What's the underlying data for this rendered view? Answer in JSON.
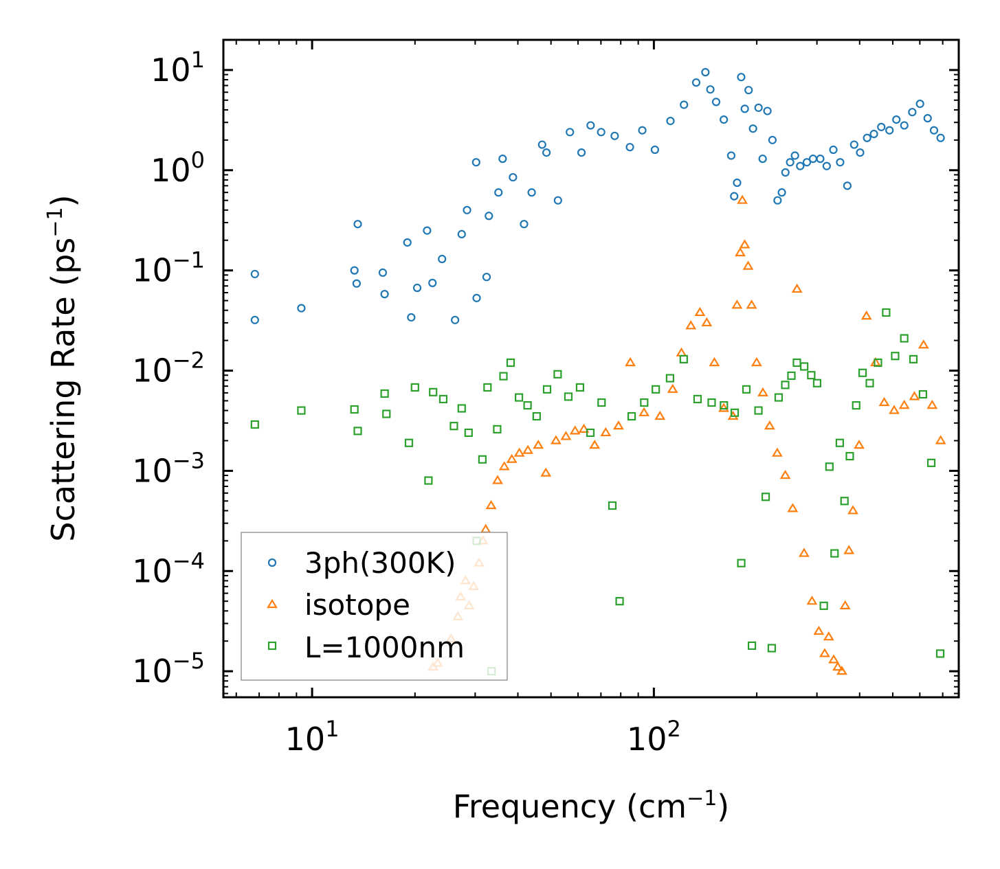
{
  "chart_data": {
    "type": "scatter",
    "xscale": "log",
    "yscale": "log",
    "xlim": [
      5.5,
      780
    ],
    "ylim": [
      5.5e-06,
      20
    ],
    "xlabel": "Frequency (cm",
    "xlabel_sup": "−1",
    "xlabel_end": ")",
    "ylabel": "Scattering Rate (ps",
    "ylabel_sup": "−1",
    "ylabel_end": ")",
    "xticks": [
      {
        "value": 10,
        "base": "10",
        "exp": "1"
      },
      {
        "value": 100,
        "base": "10",
        "exp": "2"
      }
    ],
    "yticks": [
      {
        "value": 10,
        "base": "10",
        "exp": "1"
      },
      {
        "value": 1,
        "base": "10",
        "exp": "0"
      },
      {
        "value": 0.1,
        "base": "10",
        "exp": "−1"
      },
      {
        "value": 0.01,
        "base": "10",
        "exp": "−2"
      },
      {
        "value": 0.001,
        "base": "10",
        "exp": "−3"
      },
      {
        "value": 0.0001,
        "base": "10",
        "exp": "−4"
      },
      {
        "value": 1e-05,
        "base": "10",
        "exp": "−5"
      }
    ],
    "legend_position": "bottom-left",
    "series": [
      {
        "name": "3ph(300K)",
        "marker": "circle",
        "color": "#1f77b4",
        "x": [
          6.8,
          6.8,
          9.3,
          13.3,
          13.5,
          13.6,
          16.1,
          16.3,
          19,
          19.5,
          20.3,
          21.7,
          22.5,
          24,
          26.2,
          27.4,
          28.4,
          30.3,
          30.2,
          32.4,
          32.9,
          35.1,
          36.1,
          38.7,
          41.7,
          43.9,
          47.1,
          48.5,
          52.4,
          56.8,
          61.4,
          65.3,
          70.1,
          76.8,
          85.1,
          92.5,
          100.7,
          111.8,
          122.5,
          133,
          141.5,
          146.3,
          152.1,
          160.2,
          168.4,
          171.8,
          175.2,
          180.1,
          184.5,
          189.3,
          195,
          202.4,
          208.1,
          214.9,
          222.3,
          230.1,
          236.8,
          242.6,
          250.4,
          258.7,
          268,
          280.3,
          292.2,
          306.8,
          320.4,
          335.1,
          350.8,
          368.2,
          385.5,
          401.3,
          420.6,
          440.4,
          462.8,
          489.1,
          512.3,
          540.4,
          570.2,
          600.8,
          632.5,
          660.1,
          690.3
        ],
        "y": [
          0.092,
          0.032,
          0.042,
          0.1,
          0.074,
          0.29,
          0.095,
          0.058,
          0.19,
          0.034,
          0.067,
          0.25,
          0.075,
          0.13,
          0.032,
          0.23,
          0.4,
          0.053,
          1.2,
          0.086,
          0.35,
          0.6,
          1.3,
          0.85,
          0.29,
          0.6,
          1.8,
          1.5,
          0.5,
          2.4,
          1.5,
          2.8,
          2.4,
          2.2,
          1.7,
          2.5,
          1.6,
          3.1,
          4.5,
          7.5,
          9.5,
          6.4,
          4.8,
          3.2,
          1.4,
          0.55,
          0.75,
          8.5,
          4.1,
          6.3,
          2.6,
          4.2,
          1.3,
          3.9,
          2,
          0.5,
          0.6,
          0.95,
          1.2,
          1.4,
          1.1,
          1.2,
          1.3,
          1.3,
          1.1,
          1.6,
          1.2,
          0.7,
          1.8,
          1.5,
          2.1,
          2.3,
          2.7,
          2.5,
          3.2,
          2.8,
          3.8,
          4.6,
          3.3,
          2.5,
          2.1
        ]
      },
      {
        "name": "isotope",
        "marker": "triangle",
        "color": "#ff7f0e",
        "x": [
          22.6,
          23.3,
          25.5,
          26.7,
          27.2,
          28.1,
          28.8,
          29.7,
          30.8,
          31.6,
          32.2,
          33.4,
          34.9,
          36.5,
          38.4,
          40.4,
          42.8,
          45.9,
          48.3,
          51.7,
          55.3,
          58.8,
          62.4,
          67.1,
          72.3,
          78.8,
          85.3,
          93.6,
          104.2,
          113.5,
          120.4,
          128.3,
          136.4,
          142.8,
          150.3,
          160.1,
          170.5,
          175.1,
          178.9,
          181.5,
          184.4,
          188.7,
          193.2,
          199.8,
          208.5,
          218.2,
          229.6,
          242.4,
          254.8,
          262.3,
          275.1,
          290.2,
          303.8,
          316.1,
          324.8,
          335.9,
          345.2,
          354.9,
          362.8,
          372.3,
          382.4,
          398.6,
          418.9,
          445.2,
          472.1,
          504.8,
          540.2,
          578.6,
          615.3,
          652.1,
          690.5
        ],
        "y": [
          1.1e-05,
          1.2e-05,
          2.1e-05,
          3.5e-05,
          5.5e-05,
          8e-05,
          4.5e-05,
          7e-05,
          0.00012,
          0.0002,
          0.00026,
          0.00045,
          0.0008,
          0.0011,
          0.0013,
          0.0015,
          0.0016,
          0.0018,
          0.00095,
          0.002,
          0.0022,
          0.0025,
          0.0026,
          0.0018,
          0.0024,
          0.0028,
          0.012,
          0.0038,
          0.0035,
          0.0065,
          0.015,
          0.028,
          0.038,
          0.03,
          0.012,
          0.0042,
          0.0035,
          0.045,
          0.15,
          0.5,
          0.18,
          0.11,
          0.045,
          0.012,
          0.006,
          0.0028,
          0.0015,
          0.0009,
          0.00042,
          0.065,
          0.00015,
          5e-05,
          2.5e-05,
          1.5e-05,
          2.2e-05,
          1.3e-05,
          1.1e-05,
          1e-05,
          4.5e-05,
          0.00016,
          0.0004,
          0.0018,
          0.035,
          0.012,
          0.0048,
          0.004,
          0.0045,
          0.0055,
          0.018,
          0.0045,
          0.002
        ]
      },
      {
        "name": "L=1000nm",
        "marker": "square",
        "color": "#2ca02c",
        "x": [
          6.8,
          9.3,
          13.3,
          13.6,
          16.3,
          16.5,
          19.2,
          20,
          21.9,
          22.6,
          24.2,
          26,
          27.4,
          28.7,
          30.3,
          31.5,
          32.6,
          33.5,
          34.8,
          36.3,
          38.1,
          40.3,
          42.7,
          45.4,
          48.7,
          52.3,
          56.2,
          60.8,
          65.2,
          70.3,
          75.6,
          79.4,
          86.1,
          93.7,
          101.3,
          111.5,
          122.3,
          134.2,
          147.6,
          160.3,
          172.4,
          180.2,
          186.5,
          193.6,
          202.3,
          212.4,
          221.3,
          231.8,
          242.3,
          252.6,
          262.1,
          275.4,
          288.7,
          300.4,
          314.2,
          326.3,
          337.8,
          349.9,
          361.2,
          374.3,
          390.8,
          408.1,
          428.2,
          452.6,
          478.3,
          508.1,
          540.2,
          574.6,
          612.8,
          648.3,
          688.5
        ],
        "y": [
          0.0029,
          0.004,
          0.0041,
          0.0025,
          0.0059,
          0.0037,
          0.0019,
          0.0068,
          0.0008,
          0.0061,
          0.0052,
          0.0028,
          0.0042,
          0.0024,
          0.0002,
          0.0013,
          0.0068,
          1e-05,
          0.0026,
          0.0088,
          0.012,
          0.0054,
          0.0045,
          0.0035,
          0.0065,
          0.0092,
          0.0055,
          0.0068,
          0.0024,
          0.0048,
          0.00045,
          5e-05,
          0.0035,
          0.0048,
          0.0065,
          0.0084,
          0.013,
          0.0052,
          0.0048,
          0.0045,
          0.0038,
          0.00012,
          0.0065,
          1.8e-05,
          0.004,
          0.00055,
          1.7e-05,
          0.0054,
          0.0072,
          0.0089,
          0.012,
          0.011,
          0.009,
          0.0075,
          4.5e-05,
          0.0011,
          0.00015,
          0.0019,
          0.0005,
          0.0014,
          0.0045,
          0.0095,
          0.0075,
          0.012,
          0.038,
          0.014,
          0.021,
          0.013,
          0.0058,
          0.0012,
          1.5e-05
        ]
      }
    ]
  }
}
